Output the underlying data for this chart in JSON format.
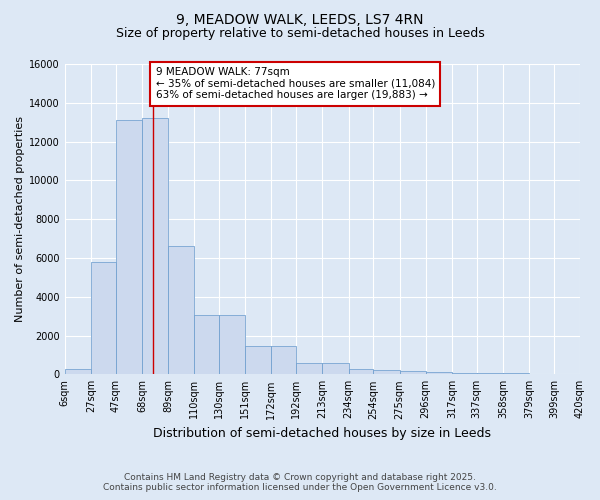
{
  "title": "9, MEADOW WALK, LEEDS, LS7 4RN",
  "subtitle": "Size of property relative to semi-detached houses in Leeds",
  "xlabel": "Distribution of semi-detached houses by size in Leeds",
  "ylabel": "Number of semi-detached properties",
  "bin_labels": [
    "6sqm",
    "27sqm",
    "47sqm",
    "68sqm",
    "89sqm",
    "110sqm",
    "130sqm",
    "151sqm",
    "172sqm",
    "192sqm",
    "213sqm",
    "234sqm",
    "254sqm",
    "275sqm",
    "296sqm",
    "317sqm",
    "337sqm",
    "358sqm",
    "379sqm",
    "399sqm",
    "420sqm"
  ],
  "bin_edges": [
    6,
    27,
    47,
    68,
    89,
    110,
    130,
    151,
    172,
    192,
    213,
    234,
    254,
    275,
    296,
    317,
    337,
    358,
    379,
    399,
    420
  ],
  "bar_heights": [
    250,
    5800,
    13100,
    13200,
    6600,
    3050,
    3050,
    1450,
    1450,
    600,
    600,
    250,
    200,
    175,
    100,
    50,
    50,
    50,
    30,
    20
  ],
  "bar_color": "#ccd9ee",
  "bar_edge_color": "#6699cc",
  "vline_x": 77,
  "vline_color": "#cc0000",
  "annotation_text": "9 MEADOW WALK: 77sqm\n← 35% of semi-detached houses are smaller (11,084)\n63% of semi-detached houses are larger (19,883) →",
  "annotation_box_color": "white",
  "annotation_box_edge": "#cc0000",
  "ylim": [
    0,
    16000
  ],
  "yticks": [
    0,
    2000,
    4000,
    6000,
    8000,
    10000,
    12000,
    14000,
    16000
  ],
  "background_color": "#dde8f5",
  "plot_bg_color": "#dde8f5",
  "footer_line1": "Contains HM Land Registry data © Crown copyright and database right 2025.",
  "footer_line2": "Contains public sector information licensed under the Open Government Licence v3.0.",
  "title_fontsize": 10,
  "subtitle_fontsize": 9,
  "tick_fontsize": 7,
  "ylabel_fontsize": 8,
  "xlabel_fontsize": 9,
  "annotation_fontsize": 7.5,
  "footer_fontsize": 6.5
}
